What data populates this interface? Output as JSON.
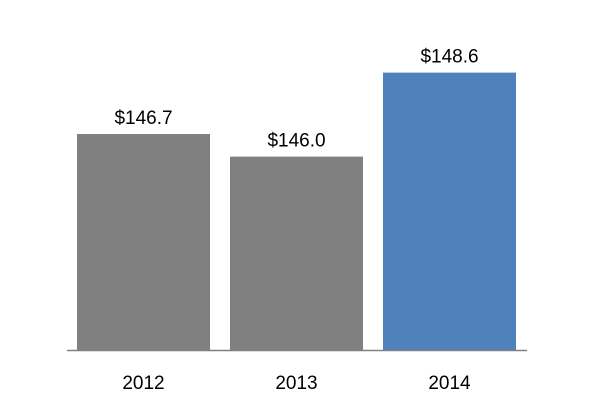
{
  "chart_data": {
    "type": "bar",
    "title": "",
    "xlabel": "",
    "ylabel": "",
    "categories": [
      "2012",
      "2013",
      "2014"
    ],
    "values": [
      146.7,
      146.0,
      148.6
    ],
    "data_labels": [
      "$146.7",
      "$146.0",
      "$148.6"
    ],
    "colors": [
      "#808080",
      "#808080",
      "#4f81bd"
    ],
    "ylim": [
      140.0,
      149.3
    ],
    "grid": false,
    "legend": "none",
    "axis_color": "#808080"
  }
}
